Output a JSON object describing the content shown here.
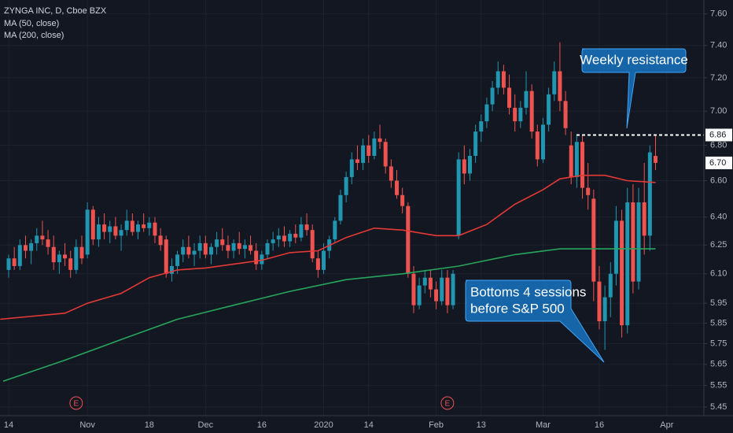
{
  "chart_data": {
    "type": "candlestick",
    "title": "ZYNGA INC, D, Cboe BZX",
    "indicators": [
      "MA (50, close)",
      "MA (200, close)"
    ],
    "log_scale": true,
    "grid": true,
    "up_color": "#2196b0",
    "down_color": "#ef5350",
    "xlim": [
      -1.54,
      123.6
    ],
    "ylim": [
      5.41,
      7.69
    ],
    "xticks": [
      {
        "value": 0,
        "label": "14"
      },
      {
        "value": 14,
        "label": "Nov"
      },
      {
        "value": 25,
        "label": "18"
      },
      {
        "value": 35,
        "label": "Dec"
      },
      {
        "value": 45,
        "label": "16"
      },
      {
        "value": 56,
        "label": "2020"
      },
      {
        "value": 64,
        "label": "14"
      },
      {
        "value": 76,
        "label": "Feb"
      },
      {
        "value": 84,
        "label": "13"
      },
      {
        "value": 95,
        "label": "Mar"
      },
      {
        "value": 105,
        "label": "16"
      },
      {
        "value": 117,
        "label": "Apr"
      }
    ],
    "yticks": [
      {
        "value": 5.45,
        "label": "5.45"
      },
      {
        "value": 5.55,
        "label": "5.55"
      },
      {
        "value": 5.65,
        "label": "5.65"
      },
      {
        "value": 5.75,
        "label": "5.75"
      },
      {
        "value": 5.85,
        "label": "5.85"
      },
      {
        "value": 5.95,
        "label": "5.95"
      },
      {
        "value": 6.1,
        "label": "6.10"
      },
      {
        "value": 6.25,
        "label": "6.25"
      },
      {
        "value": 6.4,
        "label": "6.40"
      },
      {
        "value": 6.6,
        "label": "6.60"
      },
      {
        "value": 6.8,
        "label": "6.80"
      },
      {
        "value": 7,
        "label": "7.00"
      },
      {
        "value": 7.2,
        "label": "7.20"
      },
      {
        "value": 7.4,
        "label": "7.40"
      },
      {
        "value": 7.6,
        "label": "7.60"
      }
    ],
    "ohlc": [
      [
        6.12,
        6.2,
        6.08,
        6.18
      ],
      [
        6.18,
        6.24,
        6.12,
        6.14
      ],
      [
        6.14,
        6.28,
        6.12,
        6.25
      ],
      [
        6.25,
        6.3,
        6.18,
        6.22
      ],
      [
        6.22,
        6.28,
        6.15,
        6.26
      ],
      [
        6.26,
        6.34,
        6.22,
        6.3
      ],
      [
        6.3,
        6.38,
        6.25,
        6.28
      ],
      [
        6.28,
        6.33,
        6.2,
        6.24
      ],
      [
        6.24,
        6.3,
        6.12,
        6.16
      ],
      [
        6.16,
        6.22,
        6.1,
        6.2
      ],
      [
        6.2,
        6.26,
        6.14,
        6.18
      ],
      [
        6.18,
        6.22,
        6.08,
        6.12
      ],
      [
        6.12,
        6.28,
        6.1,
        6.24
      ],
      [
        6.24,
        6.3,
        6.15,
        6.18
      ],
      [
        6.2,
        6.48,
        6.18,
        6.44
      ],
      [
        6.44,
        6.46,
        6.25,
        6.28
      ],
      [
        6.28,
        6.4,
        6.24,
        6.36
      ],
      [
        6.36,
        6.42,
        6.28,
        6.32
      ],
      [
        6.32,
        6.38,
        6.26,
        6.35
      ],
      [
        6.35,
        6.4,
        6.28,
        6.3
      ],
      [
        6.3,
        6.36,
        6.22,
        6.33
      ],
      [
        6.33,
        6.44,
        6.3,
        6.38
      ],
      [
        6.38,
        6.42,
        6.3,
        6.32
      ],
      [
        6.32,
        6.38,
        6.28,
        6.36
      ],
      [
        6.36,
        6.42,
        6.32,
        6.34
      ],
      [
        6.34,
        6.4,
        6.3,
        6.37
      ],
      [
        6.37,
        6.4,
        6.26,
        6.3
      ],
      [
        6.3,
        6.34,
        6.22,
        6.25
      ],
      [
        6.28,
        6.3,
        6.08,
        6.1
      ],
      [
        6.1,
        6.18,
        6.06,
        6.14
      ],
      [
        6.14,
        6.22,
        6.1,
        6.2
      ],
      [
        6.2,
        6.28,
        6.16,
        6.24
      ],
      [
        6.24,
        6.3,
        6.18,
        6.2
      ],
      [
        6.2,
        6.26,
        6.14,
        6.22
      ],
      [
        6.22,
        6.3,
        6.18,
        6.26
      ],
      [
        6.26,
        6.3,
        6.18,
        6.2
      ],
      [
        6.2,
        6.26,
        6.15,
        6.24
      ],
      [
        6.24,
        6.32,
        6.2,
        6.28
      ],
      [
        6.28,
        6.34,
        6.22,
        6.25
      ],
      [
        6.25,
        6.3,
        6.18,
        6.22
      ],
      [
        6.22,
        6.28,
        6.18,
        6.26
      ],
      [
        6.26,
        6.32,
        6.2,
        6.23
      ],
      [
        6.23,
        6.28,
        6.18,
        6.25
      ],
      [
        6.25,
        6.3,
        6.2,
        6.22
      ],
      [
        6.22,
        6.26,
        6.12,
        6.15
      ],
      [
        6.15,
        6.22,
        6.12,
        6.2
      ],
      [
        6.2,
        6.28,
        6.18,
        6.26
      ],
      [
        6.26,
        6.32,
        6.22,
        6.28
      ],
      [
        6.28,
        6.34,
        6.24,
        6.3
      ],
      [
        6.3,
        6.35,
        6.24,
        6.27
      ],
      [
        6.27,
        6.33,
        6.24,
        6.31
      ],
      [
        6.31,
        6.36,
        6.26,
        6.29
      ],
      [
        6.29,
        6.4,
        6.27,
        6.36
      ],
      [
        6.36,
        6.42,
        6.3,
        6.33
      ],
      [
        6.33,
        6.36,
        6.16,
        6.18
      ],
      [
        6.18,
        6.22,
        6.08,
        6.12
      ],
      [
        6.12,
        6.26,
        6.1,
        6.22
      ],
      [
        6.22,
        6.3,
        6.18,
        6.28
      ],
      [
        6.28,
        6.4,
        6.26,
        6.38
      ],
      [
        6.38,
        6.55,
        6.36,
        6.52
      ],
      [
        6.52,
        6.65,
        6.48,
        6.62
      ],
      [
        6.62,
        6.76,
        6.58,
        6.72
      ],
      [
        6.72,
        6.8,
        6.66,
        6.7
      ],
      [
        6.7,
        6.84,
        6.66,
        6.8
      ],
      [
        6.8,
        6.86,
        6.7,
        6.74
      ],
      [
        6.74,
        6.88,
        6.72,
        6.84
      ],
      [
        6.84,
        6.92,
        6.78,
        6.82
      ],
      [
        6.82,
        6.84,
        6.64,
        6.68
      ],
      [
        6.68,
        6.72,
        6.56,
        6.6
      ],
      [
        6.6,
        6.66,
        6.5,
        6.52
      ],
      [
        6.52,
        6.56,
        6.42,
        6.46
      ],
      [
        6.46,
        6.48,
        6.08,
        6.1
      ],
      [
        6.1,
        6.14,
        5.9,
        5.94
      ],
      [
        5.94,
        6.08,
        5.92,
        6.04
      ],
      [
        6.04,
        6.12,
        6.0,
        6.08
      ],
      [
        6.08,
        6.12,
        5.98,
        6.02
      ],
      [
        6.02,
        6.06,
        5.92,
        5.96
      ],
      [
        5.96,
        6.12,
        5.94,
        6.08
      ],
      [
        6.08,
        6.12,
        5.9,
        5.94
      ],
      [
        5.94,
        6.12,
        5.92,
        6.1
      ],
      [
        6.3,
        6.76,
        6.28,
        6.72
      ],
      [
        6.72,
        6.8,
        6.58,
        6.64
      ],
      [
        6.64,
        6.78,
        6.6,
        6.74
      ],
      [
        6.74,
        6.92,
        6.7,
        6.88
      ],
      [
        6.88,
        6.98,
        6.82,
        6.94
      ],
      [
        6.94,
        7.08,
        6.9,
        7.04
      ],
      [
        7.04,
        7.18,
        7.0,
        7.14
      ],
      [
        7.14,
        7.3,
        7.1,
        7.24
      ],
      [
        7.24,
        7.28,
        7.1,
        7.14
      ],
      [
        7.14,
        7.22,
        6.98,
        7.02
      ],
      [
        7.02,
        7.1,
        6.88,
        6.94
      ],
      [
        6.94,
        7.06,
        6.9,
        7.02
      ],
      [
        7.02,
        7.24,
        6.98,
        7.12
      ],
      [
        7.12,
        7.16,
        6.84,
        6.88
      ],
      [
        6.88,
        6.92,
        6.68,
        6.72
      ],
      [
        6.72,
        6.96,
        6.7,
        6.92
      ],
      [
        6.92,
        7.14,
        6.88,
        7.1
      ],
      [
        7.1,
        7.3,
        7.06,
        7.24
      ],
      [
        7.24,
        7.42,
        7.0,
        7.06
      ],
      [
        7.06,
        7.12,
        6.86,
        6.9
      ],
      [
        6.8,
        6.88,
        6.58,
        6.62
      ],
      [
        6.62,
        6.86,
        6.56,
        6.82
      ],
      [
        6.82,
        6.86,
        6.5,
        6.56
      ],
      [
        6.56,
        6.7,
        6.44,
        6.52
      ],
      [
        6.5,
        6.55,
        5.96,
        6.06
      ],
      [
        6.06,
        6.14,
        5.82,
        5.86
      ],
      [
        5.86,
        6.04,
        5.72,
        5.98
      ],
      [
        5.98,
        6.16,
        5.88,
        6.1
      ],
      [
        6.1,
        6.46,
        6.04,
        6.38
      ],
      [
        6.38,
        6.44,
        5.78,
        5.84
      ],
      [
        5.84,
        6.56,
        5.8,
        6.48
      ],
      [
        6.48,
        6.58,
        6.0,
        6.06
      ],
      [
        6.06,
        6.56,
        6.02,
        6.48
      ],
      [
        6.48,
        6.7,
        6.2,
        6.3
      ],
      [
        6.3,
        6.8,
        6.22,
        6.76
      ],
      [
        6.74,
        6.86,
        6.66,
        6.7
      ]
    ],
    "series": [
      {
        "name": "MA (50, close)",
        "color": "#e53935",
        "x": [
          -1.5,
          10,
          14,
          20,
          25,
          30,
          35,
          45,
          50,
          55,
          60,
          65,
          70,
          76,
          80,
          85,
          90,
          95,
          98,
          102,
          106,
          110,
          115
        ],
        "values": [
          5.87,
          5.9,
          5.95,
          6.0,
          6.08,
          6.12,
          6.13,
          6.17,
          6.21,
          6.22,
          6.29,
          6.34,
          6.33,
          6.3,
          6.3,
          6.36,
          6.47,
          6.55,
          6.61,
          6.63,
          6.63,
          6.6,
          6.59
        ]
      },
      {
        "name": "MA (200, close)",
        "color": "#26a65b",
        "x": [
          -1,
          10,
          20,
          30,
          40,
          50,
          60,
          70,
          80,
          90,
          98,
          106,
          115
        ],
        "values": [
          5.57,
          5.67,
          5.77,
          5.87,
          5.94,
          6.01,
          6.07,
          6.1,
          6.14,
          6.2,
          6.23,
          6.23,
          6.23
        ]
      }
    ],
    "events": [
      {
        "label": "E",
        "x": 12
      },
      {
        "label": "E",
        "x": 78
      }
    ],
    "resistance": {
      "value": 6.86,
      "label": "6.86"
    },
    "last_price": {
      "value": 6.7,
      "label": "6.70"
    },
    "annotations": [
      "Weekly resistance",
      "Bottoms 4 sessions",
      "before S&P 500"
    ]
  }
}
